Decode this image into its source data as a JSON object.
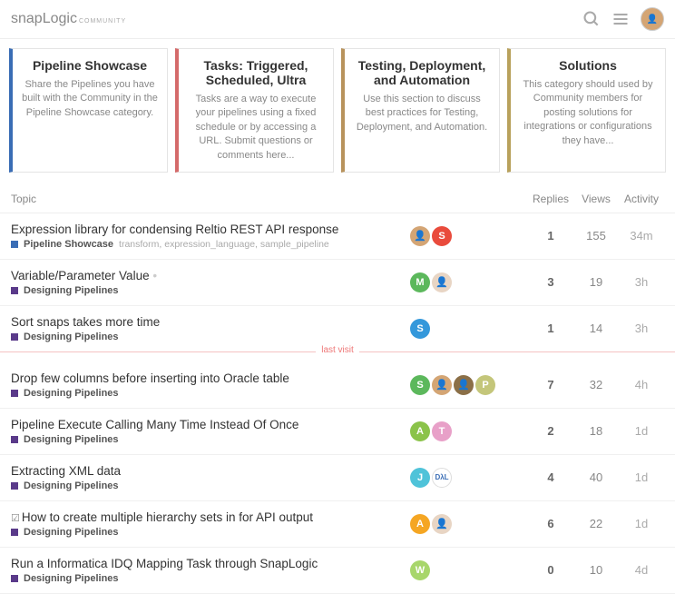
{
  "logo": {
    "part1": "snap",
    "part2": "Logic",
    "sub": "COMMUNITY"
  },
  "cards": [
    {
      "title": "Pipeline Showcase",
      "desc": "Share the Pipelines you have built with the Community in the Pipeline Showcase category.",
      "color": "#3a6db5"
    },
    {
      "title": "Tasks: Triggered, Scheduled, Ultra",
      "desc": "Tasks are a way to execute your pipelines using a fixed schedule or by accessing a URL. Submit questions or comments here...",
      "color": "#d46a6a"
    },
    {
      "title": "Testing, Deployment, and Automation",
      "desc": "Use this section to discuss best practices for Testing, Deployment, and Automation.",
      "color": "#b8935c"
    },
    {
      "title": "Solutions",
      "desc": "This category should used by Community members for posting solutions for integrations or configurations they have...",
      "color": "#b8a15c"
    }
  ],
  "columns": {
    "topic": "Topic",
    "replies": "Replies",
    "views": "Views",
    "activity": "Activity"
  },
  "lastVisit": "last visit",
  "categoryColors": {
    "pipeline": "#3a6db5",
    "designing": "#5a3a8a"
  },
  "topics": [
    {
      "title": "Expression library for condensing Reltio REST API response",
      "category": "Pipeline Showcase",
      "catColor": "#3a6db5",
      "tags": "transform, expression_language, sample_pipeline",
      "users": [
        {
          "t": "img",
          "c": "#d4a574"
        },
        {
          "t": "l",
          "l": "S",
          "c": "#e94b3c"
        }
      ],
      "replies": "1",
      "views": "155",
      "activity": "34m",
      "checked": false
    },
    {
      "title": "Variable/Parameter Value",
      "category": "Designing Pipelines",
      "catColor": "#5a3a8a",
      "tags": "",
      "users": [
        {
          "t": "l",
          "l": "M",
          "c": "#5cb85c"
        },
        {
          "t": "img",
          "c": "#e8d5c4"
        }
      ],
      "replies": "3",
      "views": "19",
      "activity": "3h",
      "checked": false,
      "dot": true
    },
    {
      "title": "Sort snaps takes more time",
      "category": "Designing Pipelines",
      "catColor": "#5a3a8a",
      "tags": "",
      "users": [
        {
          "t": "l",
          "l": "S",
          "c": "#3498db"
        }
      ],
      "replies": "1",
      "views": "14",
      "activity": "3h",
      "checked": false
    },
    {
      "title": "Drop few columns before inserting into Oracle table",
      "category": "Designing Pipelines",
      "catColor": "#5a3a8a",
      "tags": "",
      "users": [
        {
          "t": "l",
          "l": "S",
          "c": "#5cb85c"
        },
        {
          "t": "img",
          "c": "#d4a574"
        },
        {
          "t": "img",
          "c": "#8b6f47"
        },
        {
          "t": "l",
          "l": "P",
          "c": "#c4c67a"
        }
      ],
      "replies": "7",
      "views": "32",
      "activity": "4h",
      "checked": false,
      "afterVisit": true
    },
    {
      "title": "Pipeline Execute Calling Many Time Instead Of Once",
      "category": "Designing Pipelines",
      "catColor": "#5a3a8a",
      "tags": "",
      "users": [
        {
          "t": "l",
          "l": "A",
          "c": "#8bc34a"
        },
        {
          "t": "l",
          "l": "T",
          "c": "#e8a0c8"
        }
      ],
      "replies": "2",
      "views": "18",
      "activity": "1d",
      "checked": false
    },
    {
      "title": "Extracting XML data",
      "category": "Designing Pipelines",
      "catColor": "#5a3a8a",
      "tags": "",
      "users": [
        {
          "t": "l",
          "l": "J",
          "c": "#4fc3d9"
        },
        {
          "t": "txt",
          "l": "DλL",
          "c": "#fff",
          "fg": "#3a6db5"
        }
      ],
      "replies": "4",
      "views": "40",
      "activity": "1d",
      "checked": false
    },
    {
      "title": "How to create multiple hierarchy sets in for API output",
      "category": "Designing Pipelines",
      "catColor": "#5a3a8a",
      "tags": "",
      "users": [
        {
          "t": "l",
          "l": "A",
          "c": "#f5a623"
        },
        {
          "t": "img",
          "c": "#e8d5c4"
        }
      ],
      "replies": "6",
      "views": "22",
      "activity": "1d",
      "checked": true
    },
    {
      "title": "Run a Informatica IDQ Mapping Task through SnapLogic",
      "category": "Designing Pipelines",
      "catColor": "#5a3a8a",
      "tags": "",
      "users": [
        {
          "t": "l",
          "l": "W",
          "c": "#a8d66b"
        }
      ],
      "replies": "0",
      "views": "10",
      "activity": "4d",
      "checked": false
    }
  ]
}
